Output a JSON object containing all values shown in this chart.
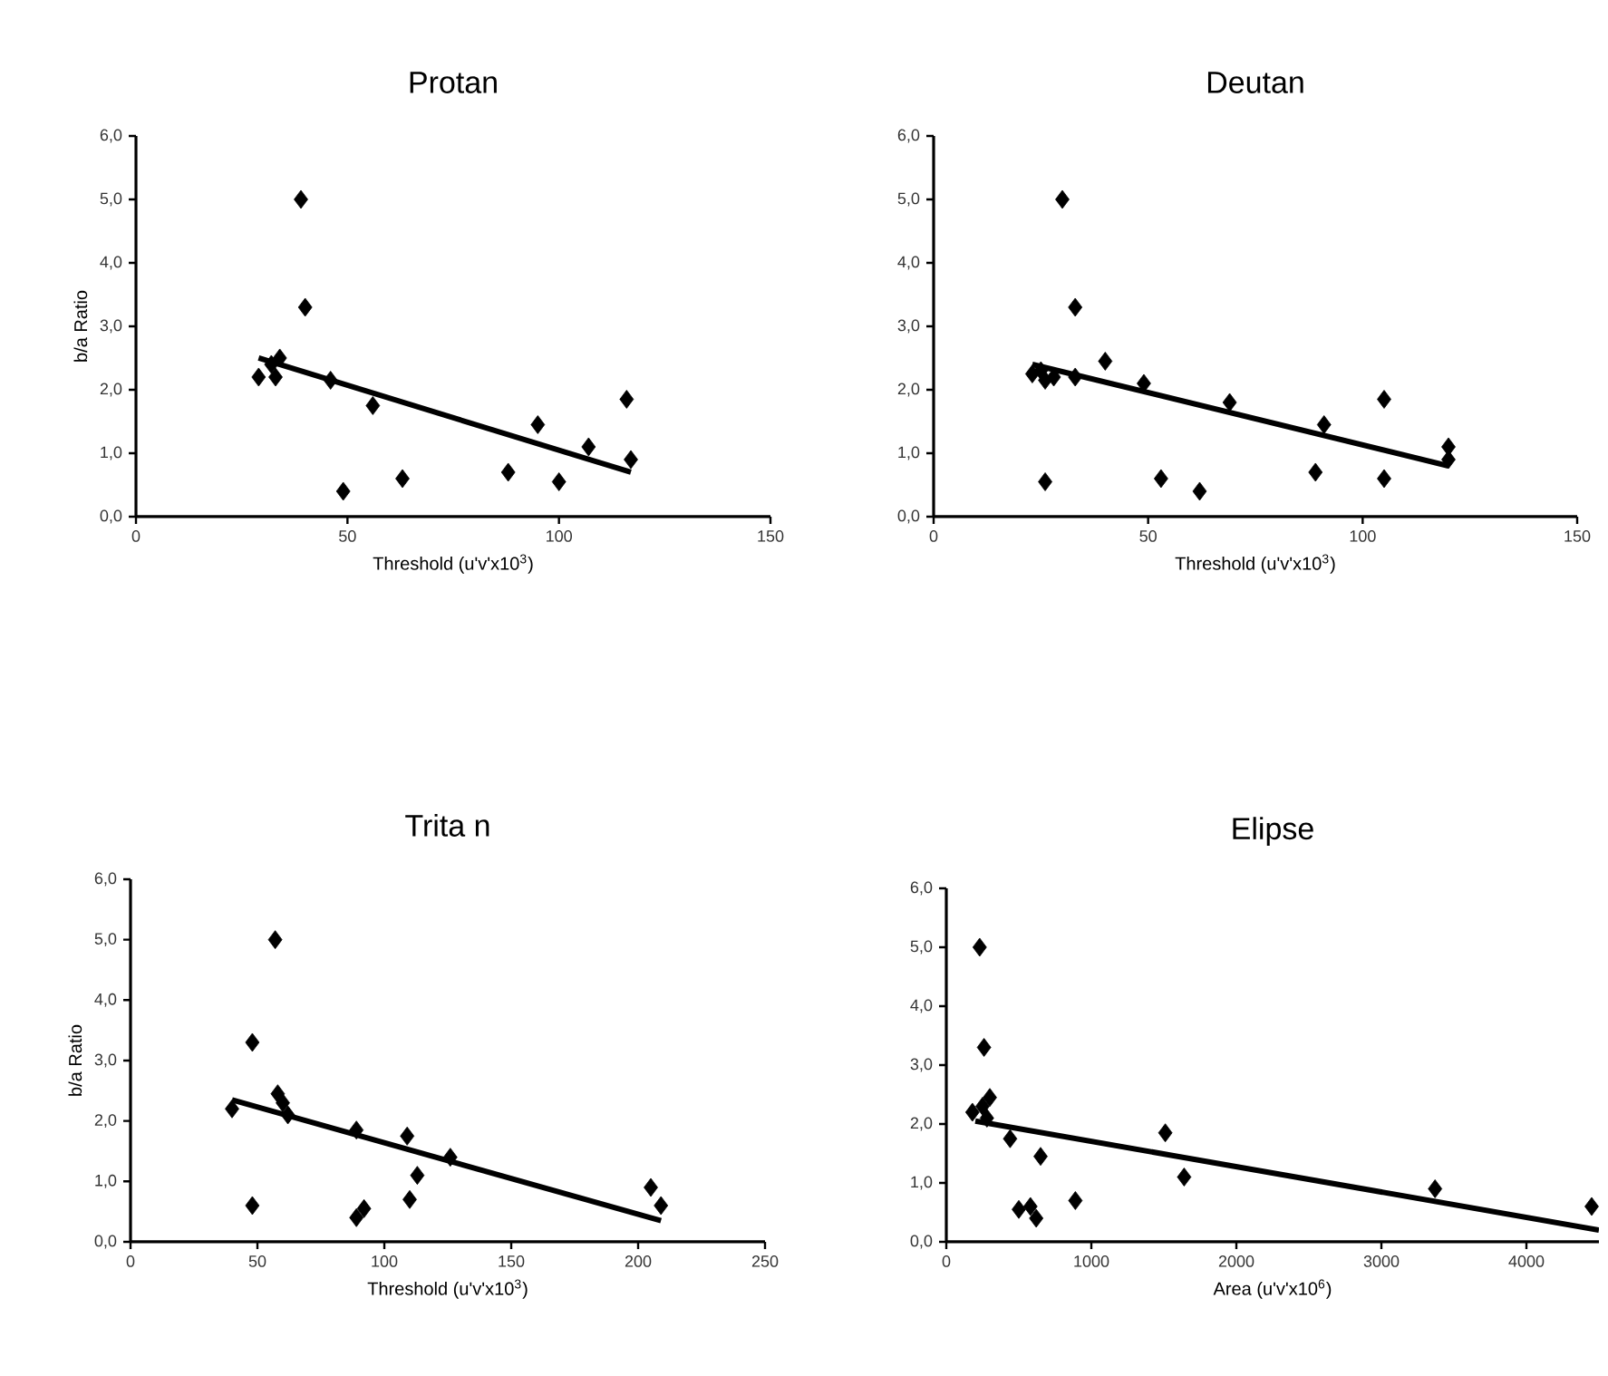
{
  "chart_data": [
    {
      "type": "scatter",
      "title": "Protan",
      "xlabel": "Threshold (u'v'x10$^{3}$)",
      "ylabel": "b/a Ratio",
      "marker": "diamond",
      "xlim": [
        0,
        150
      ],
      "xticks": [
        0,
        50,
        100,
        150
      ],
      "ylim": [
        0,
        6
      ],
      "yticks": [
        {
          "value": 0,
          "label": "0,0"
        },
        {
          "value": 1,
          "label": "1,0"
        },
        {
          "value": 2,
          "label": "2,0"
        },
        {
          "value": 3,
          "label": "3,0"
        },
        {
          "value": 4,
          "label": "4,0"
        },
        {
          "value": 5,
          "label": "5,0"
        },
        {
          "value": 6,
          "label": "6,0"
        }
      ],
      "series": [
        {
          "type": "scatter",
          "color": "#000000",
          "x": [
            29,
            32,
            33,
            34,
            39,
            40,
            46,
            49,
            56,
            63,
            88,
            95,
            100,
            107,
            116,
            117
          ],
          "values": [
            2.2,
            2.4,
            2.2,
            2.5,
            5.0,
            3.3,
            2.15,
            0.4,
            1.75,
            0.6,
            0.7,
            1.45,
            0.55,
            1.1,
            1.85,
            0.9
          ]
        },
        {
          "type": "line",
          "color": "#000000",
          "marker": "none",
          "x": [
            29,
            117
          ],
          "values": [
            2.5,
            0.7
          ]
        }
      ]
    },
    {
      "type": "scatter",
      "title": "Deutan",
      "xlabel": "Threshold (u'v'x10$^{3}$)",
      "marker": "diamond",
      "xlim": [
        0,
        150
      ],
      "xticks": [
        0,
        50,
        100,
        150
      ],
      "ylim": [
        0,
        6
      ],
      "yticks": [
        {
          "value": 0,
          "label": "0,0"
        },
        {
          "value": 1,
          "label": "1,0"
        },
        {
          "value": 2,
          "label": "2,0"
        },
        {
          "value": 3,
          "label": "3,0"
        },
        {
          "value": 4,
          "label": "4,0"
        },
        {
          "value": 5,
          "label": "5,0"
        },
        {
          "value": 6,
          "label": "6,0"
        }
      ],
      "series": [
        {
          "type": "scatter",
          "color": "#000000",
          "x": [
            23,
            25,
            26,
            26,
            28,
            30,
            33,
            33,
            40,
            49,
            53,
            62,
            69,
            89,
            91,
            105,
            105,
            120,
            120
          ],
          "values": [
            2.25,
            2.3,
            0.55,
            2.15,
            2.2,
            5.0,
            3.3,
            2.2,
            2.45,
            2.1,
            0.6,
            0.4,
            1.8,
            0.7,
            1.45,
            1.85,
            0.6,
            1.1,
            0.9
          ]
        },
        {
          "type": "line",
          "color": "#000000",
          "marker": "none",
          "x": [
            23,
            120
          ],
          "values": [
            2.4,
            0.8
          ]
        }
      ]
    },
    {
      "type": "scatter",
      "title": "Trita n",
      "xlabel": "Threshold (u'v'x10$^{3}$)",
      "ylabel": "b/a Ratio",
      "marker": "diamond",
      "xlim": [
        0,
        250
      ],
      "xticks": [
        0,
        50,
        100,
        150,
        200,
        250
      ],
      "ylim": [
        0,
        6
      ],
      "yticks": [
        {
          "value": 0,
          "label": "0,0"
        },
        {
          "value": 1,
          "label": "1,0"
        },
        {
          "value": 2,
          "label": "2,0"
        },
        {
          "value": 3,
          "label": "3,0"
        },
        {
          "value": 4,
          "label": "4,0"
        },
        {
          "value": 5,
          "label": "5,0"
        },
        {
          "value": 6,
          "label": "6,0"
        }
      ],
      "series": [
        {
          "type": "scatter",
          "color": "#000000",
          "x": [
            40,
            48,
            48,
            57,
            58,
            60,
            62,
            89,
            89,
            92,
            109,
            110,
            113,
            126,
            205,
            209
          ],
          "values": [
            2.2,
            3.3,
            0.6,
            5.0,
            2.45,
            2.3,
            2.1,
            1.85,
            0.4,
            0.55,
            1.75,
            0.7,
            1.1,
            1.4,
            0.9,
            0.6
          ]
        },
        {
          "type": "line",
          "color": "#000000",
          "marker": "none",
          "x": [
            40,
            209
          ],
          "values": [
            2.35,
            0.35
          ]
        }
      ]
    },
    {
      "type": "scatter",
      "title": "Elipse",
      "xlabel": "Area (u'v'x10$^{6}$)",
      "marker": "diamond",
      "xlim": [
        0,
        4500
      ],
      "xticks": [
        0,
        1000,
        2000,
        3000,
        4000
      ],
      "ylim": [
        0,
        6
      ],
      "yticks": [
        {
          "value": 0,
          "label": "0,0"
        },
        {
          "value": 1,
          "label": "1,0"
        },
        {
          "value": 2,
          "label": "2,0"
        },
        {
          "value": 3,
          "label": "3,0"
        },
        {
          "value": 4,
          "label": "4,0"
        },
        {
          "value": 5,
          "label": "5,0"
        },
        {
          "value": 6,
          "label": "6,0"
        }
      ],
      "series": [
        {
          "type": "scatter",
          "color": "#000000",
          "x": [
            180,
            230,
            250,
            260,
            280,
            300,
            440,
            500,
            580,
            620,
            650,
            890,
            1510,
            1640,
            3370,
            4450
          ],
          "values": [
            2.2,
            5.0,
            2.3,
            3.3,
            2.1,
            2.45,
            1.75,
            0.55,
            0.6,
            0.4,
            1.45,
            0.7,
            1.85,
            1.1,
            0.9,
            0.6
          ]
        },
        {
          "type": "line",
          "color": "#000000",
          "marker": "none",
          "x": [
            200,
            4500
          ],
          "values": [
            2.05,
            0.2
          ]
        }
      ]
    }
  ]
}
